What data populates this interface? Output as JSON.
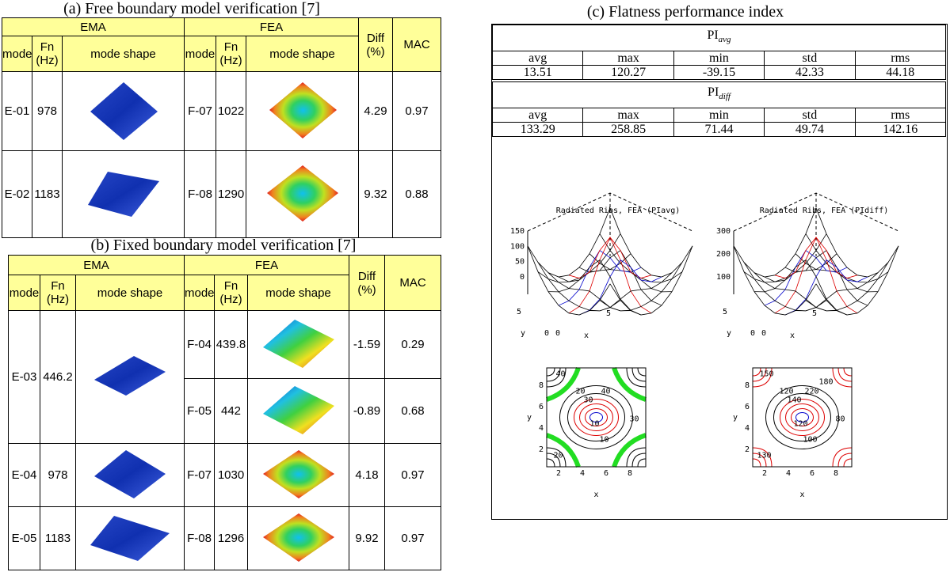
{
  "table_a": {
    "title": "(a)  Free boundary model verification [7]",
    "header": [
      "EMA",
      "FEA",
      "Diff (%)",
      "MAC"
    ],
    "subheader": [
      "mode",
      "Fn (Hz)",
      "mode shape",
      "mode",
      "Fn (Hz)",
      "mode shape"
    ],
    "rows": [
      [
        "E-01",
        "978",
        "F-07",
        "1022",
        "4.29",
        "0.97"
      ],
      [
        "E-02",
        "1183",
        "F-08",
        "1290",
        "9.32",
        "0.88"
      ]
    ]
  },
  "table_b": {
    "title": "(b)  Fixed boundary model verification [7]",
    "header": [
      "EMA",
      "FEA",
      "Diff (%)",
      "MAC"
    ],
    "subheader": [
      "mode",
      "Fn (Hz)",
      "mode shape",
      "mode",
      "Fn (Hz)",
      "mode shape"
    ],
    "rows": [
      [
        "E-03",
        "446.2",
        "F-04",
        "439.8",
        "-1.59",
        "0.29"
      ],
      [
        null,
        null,
        "F-05",
        "442",
        "-0.89",
        "0.68"
      ],
      [
        "E-04",
        "978",
        "F-07",
        "1030",
        "4.18",
        "0.97"
      ],
      [
        "E-05",
        "1183",
        "F-08",
        "1296",
        "9.92",
        "0.97"
      ]
    ]
  },
  "table_c": {
    "title": "(c) Flatness performance index",
    "blocks": [
      {
        "symbol": "PI",
        "subscript": "avg",
        "columns": [
          "avg",
          "max",
          "min",
          "std",
          "rms"
        ],
        "values": [
          "13.51",
          "120.27",
          "-39.15",
          "42.33",
          "44.18"
        ]
      },
      {
        "symbol": "PI",
        "subscript": "diff",
        "columns": [
          "avg",
          "max",
          "min",
          "std",
          "rms"
        ],
        "values": [
          "133.29",
          "258.85",
          "71.44",
          "49.74",
          "142.16"
        ]
      }
    ]
  },
  "plots": [
    {
      "title": "Radiated Ribs, FEA (PIavg)",
      "surface": {
        "zticks": [
          "150",
          "100",
          "50",
          "0"
        ],
        "y_label": "y",
        "x_label": "x",
        "ticks": [
          "5",
          "0",
          "0",
          "5"
        ]
      },
      "contour": {
        "yticks": [
          "8",
          "6",
          "4",
          "2"
        ],
        "xticks": [
          "2",
          "4",
          "6",
          "8"
        ],
        "y_label": "y",
        "x_label": "x",
        "levels": [
          "40",
          "20",
          "40",
          "30",
          "20",
          "10",
          "10",
          "30"
        ]
      }
    },
    {
      "title": "Radiated Ribs, FEA (PIdiff)",
      "surface": {
        "zticks": [
          "300",
          "200",
          "100"
        ],
        "y_label": "y",
        "x_label": "x",
        "ticks": [
          "5",
          "0",
          "0",
          "5"
        ]
      },
      "contour": {
        "yticks": [
          "8",
          "6",
          "4",
          "2"
        ],
        "xticks": [
          "2",
          "4",
          "6",
          "8"
        ],
        "y_label": "y",
        "x_label": "x",
        "levels": [
          "150",
          "120",
          "220",
          "140",
          "130",
          "100",
          "120",
          "80",
          "180"
        ]
      }
    }
  ]
}
